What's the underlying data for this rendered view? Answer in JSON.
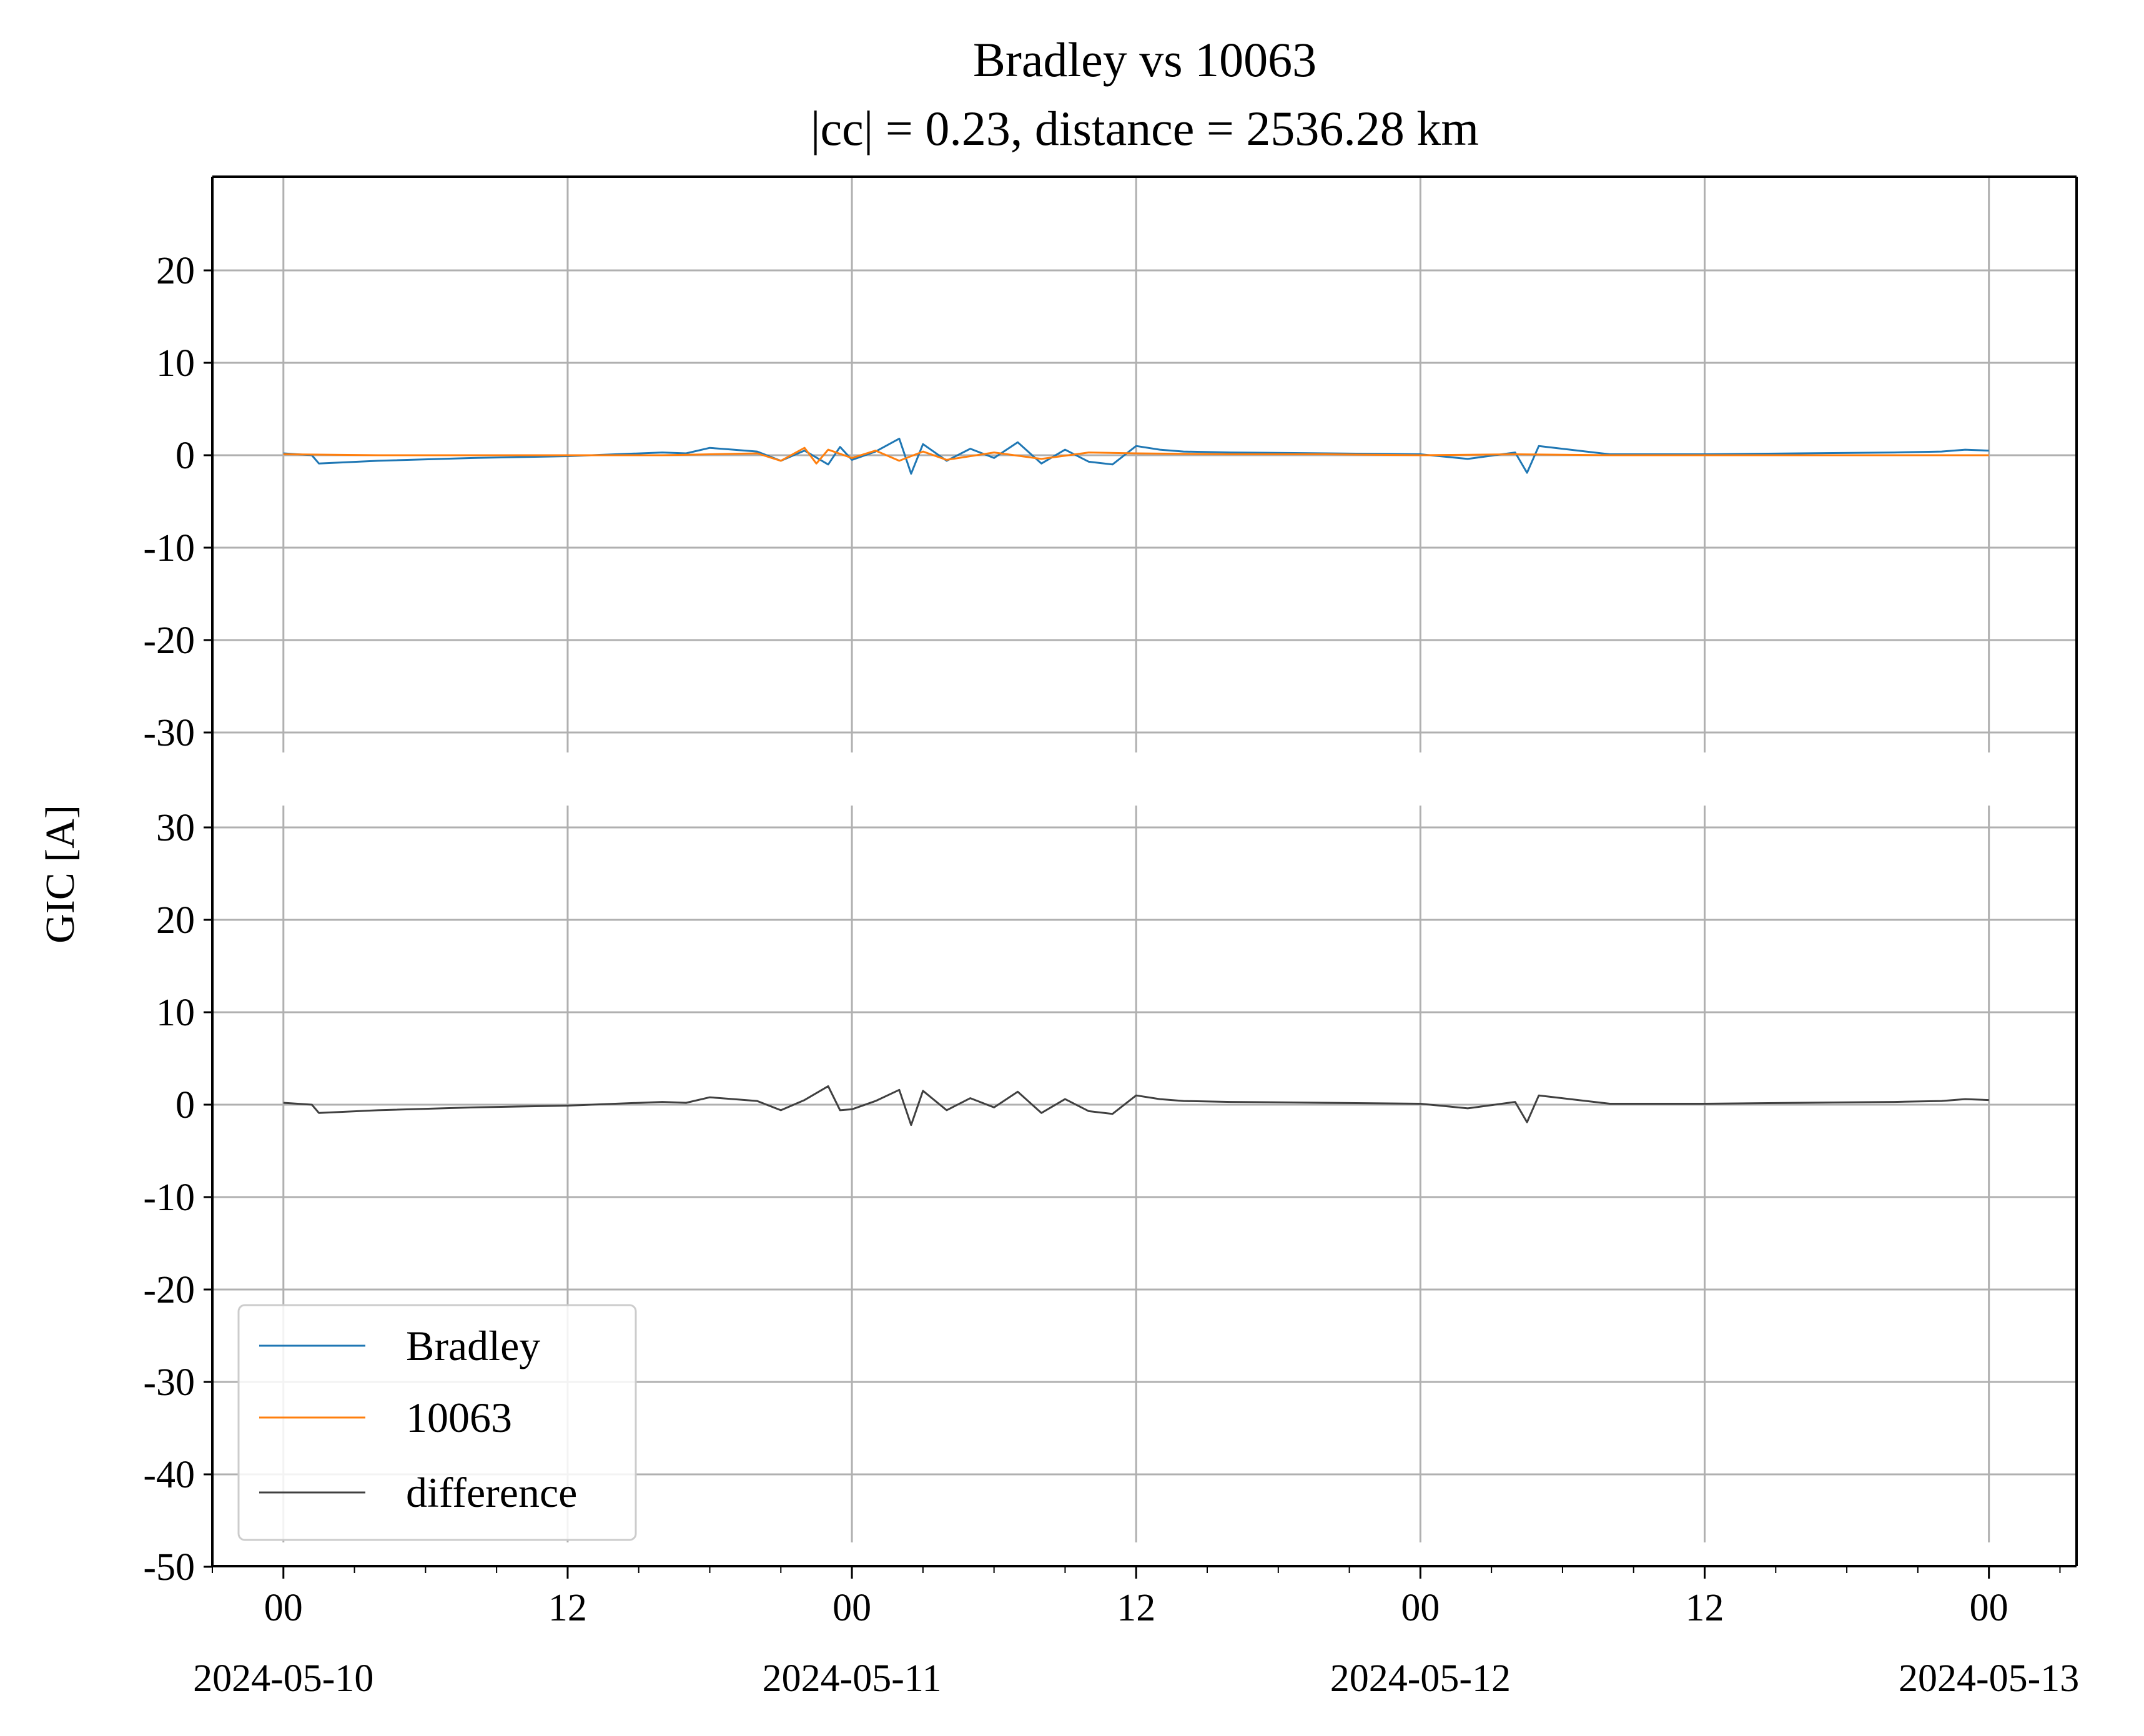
{
  "chart_data": {
    "type": "line",
    "title": "Bradley vs 10063",
    "subtitle": "|cc| = 0.23, distance = 2536.28 km",
    "ylabel": "GIC [A]",
    "xlabel": "",
    "grid": true,
    "legend_position": "lower-left",
    "colors": {
      "Bradley": "#1f77b4",
      "10063": "#ff7f0e",
      "difference": "#404040",
      "grid": "#b0b0b0"
    },
    "x_range_hours": [
      -3,
      75.7
    ],
    "x_ticks": [
      {
        "hour": 0,
        "time": "00",
        "date": "2024-05-10"
      },
      {
        "hour": 12,
        "time": "12",
        "date": ""
      },
      {
        "hour": 24,
        "time": "00",
        "date": "2024-05-11"
      },
      {
        "hour": 36,
        "time": "12",
        "date": ""
      },
      {
        "hour": 48,
        "time": "00",
        "date": "2024-05-12"
      },
      {
        "hour": 60,
        "time": "12",
        "date": ""
      },
      {
        "hour": 72,
        "time": "00",
        "date": "2024-05-13"
      }
    ],
    "top_panel": {
      "ylim": [
        -30,
        30
      ],
      "yticks": [
        "20",
        "10",
        "0",
        "-10",
        "-20",
        "-30"
      ],
      "ytick_values": [
        20,
        10,
        0,
        -10,
        -20,
        -30
      ]
    },
    "bottom_panel": {
      "ylim": [
        -50,
        30
      ],
      "yticks": [
        "30",
        "20",
        "10",
        "0",
        "-10",
        "-20",
        "-30",
        "-40",
        "-50"
      ],
      "ytick_values": [
        30,
        20,
        10,
        0,
        -10,
        -20,
        -30,
        -40,
        -50
      ]
    },
    "series": [
      {
        "name": "Bradley",
        "panel": "top",
        "x_hours": [
          0,
          1.2,
          1.5,
          4,
          8,
          12,
          16,
          17,
          18,
          19,
          20,
          21,
          22,
          23,
          23.5,
          24,
          25,
          26,
          26.5,
          27,
          28,
          29,
          30,
          31,
          32,
          33,
          34,
          35,
          36,
          37,
          38,
          40,
          44,
          48,
          50,
          52,
          52.5,
          53,
          56,
          60,
          64,
          68,
          70,
          71,
          72
        ],
        "values": [
          0.2,
          0.0,
          -0.9,
          -0.6,
          -0.3,
          -0.1,
          0.3,
          0.2,
          0.8,
          0.6,
          0.4,
          -0.6,
          0.5,
          -1.0,
          0.9,
          -0.5,
          0.4,
          1.8,
          -2.0,
          1.2,
          -0.6,
          0.7,
          -0.3,
          1.4,
          -0.9,
          0.6,
          -0.7,
          -1.0,
          1.0,
          0.6,
          0.4,
          0.3,
          0.2,
          0.1,
          -0.4,
          0.3,
          -1.9,
          1.0,
          0.1,
          0.1,
          0.2,
          0.3,
          0.4,
          0.6,
          0.5
        ]
      },
      {
        "name": "10063",
        "panel": "top",
        "x_hours": [
          0,
          4,
          8,
          12,
          16,
          20,
          21,
          22,
          22.5,
          23,
          24,
          25,
          26,
          27,
          28,
          30,
          32,
          34,
          36,
          40,
          44,
          48,
          52,
          56,
          60,
          64,
          68,
          72
        ],
        "values": [
          0.1,
          0.0,
          0.0,
          0.0,
          0.0,
          0.2,
          -0.6,
          0.8,
          -0.9,
          0.6,
          -0.3,
          0.5,
          -0.6,
          0.4,
          -0.5,
          0.3,
          -0.4,
          0.3,
          0.2,
          0.1,
          0.1,
          0.0,
          0.1,
          0.0,
          0.0,
          0.0,
          0.0,
          0.0
        ]
      },
      {
        "name": "difference",
        "panel": "bottom",
        "x_hours": [
          0,
          1.2,
          1.5,
          4,
          8,
          12,
          16,
          17,
          18,
          19,
          20,
          21,
          22,
          23,
          23.5,
          24,
          25,
          26,
          26.5,
          27,
          28,
          29,
          30,
          31,
          32,
          33,
          34,
          35,
          36,
          37,
          38,
          40,
          44,
          48,
          50,
          52,
          52.5,
          53,
          56,
          60,
          64,
          68,
          70,
          71,
          72
        ],
        "values": [
          0.2,
          0.0,
          -0.9,
          -0.6,
          -0.3,
          -0.1,
          0.3,
          0.2,
          0.8,
          0.6,
          0.4,
          -0.6,
          0.5,
          2.0,
          -0.6,
          -0.5,
          0.4,
          1.6,
          -2.2,
          1.5,
          -0.6,
          0.7,
          -0.3,
          1.4,
          -0.9,
          0.6,
          -0.7,
          -1.0,
          1.0,
          0.6,
          0.4,
          0.3,
          0.2,
          0.1,
          -0.4,
          0.3,
          -1.9,
          1.0,
          0.1,
          0.1,
          0.2,
          0.3,
          0.4,
          0.6,
          0.5
        ]
      }
    ]
  }
}
